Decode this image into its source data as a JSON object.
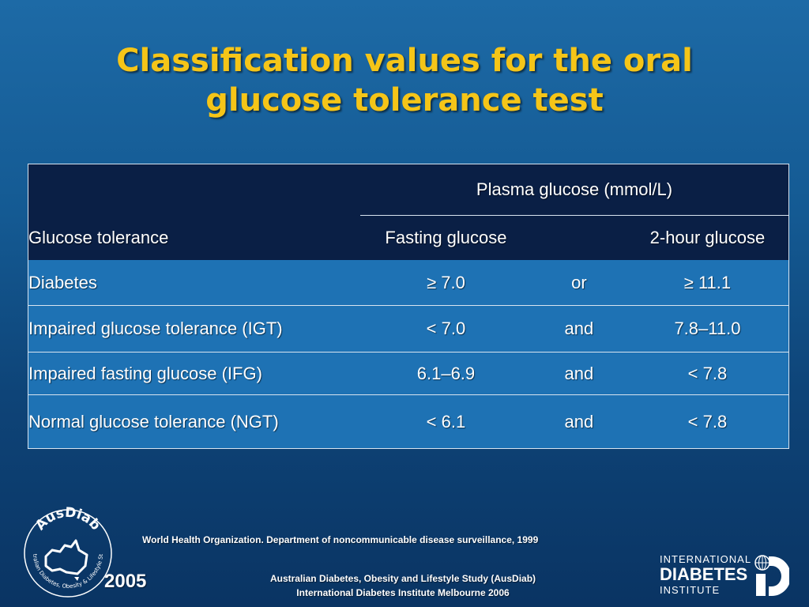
{
  "title": {
    "line1": "Classification values for the oral",
    "line2": "glucose tolerance test"
  },
  "table": {
    "group_header": "Plasma glucose (mmol/L)",
    "col_label": "Glucose tolerance",
    "col_fasting": "Fasting glucose",
    "col_2hour": "2-hour glucose",
    "rows": [
      {
        "label": "Diabetes",
        "fasting": "≥ 7.0",
        "conj": "or",
        "two_hour": "≥ 11.1"
      },
      {
        "label": "Impaired glucose tolerance (IGT)",
        "fasting": "< 7.0",
        "conj": "and",
        "two_hour": "7.8–11.0"
      },
      {
        "label": "Impaired fasting glucose  (IFG)",
        "fasting": "6.1–6.9",
        "conj": "and",
        "two_hour": "< 7.8"
      },
      {
        "label": "Normal glucose tolerance (NGT)",
        "fasting": "< 6.1",
        "conj": "and",
        "two_hour": "< 7.8"
      }
    ]
  },
  "footer": {
    "reference": "World Health Organization. Department of noncommunicable disease surveillance, 1999",
    "study_line1": "Australian Diabetes, Obesity and Lifestyle Study (AusDiab)",
    "study_line2": "International Diabetes Institute Melbourne 2006",
    "year": "2005"
  },
  "logos": {
    "ausdiab_name": "AusDiab",
    "ausdiab_ring": "Australian Diabetes, Obesity & Lifestyle Study",
    "idi_line1": "INTERNATIONAL",
    "idi_line2": "DIABETES",
    "idi_line3": "INSTITUTE"
  },
  "colors": {
    "title": "#f5c518",
    "header_bg": "#0a1f45",
    "row_bg": "#1e72b4"
  }
}
